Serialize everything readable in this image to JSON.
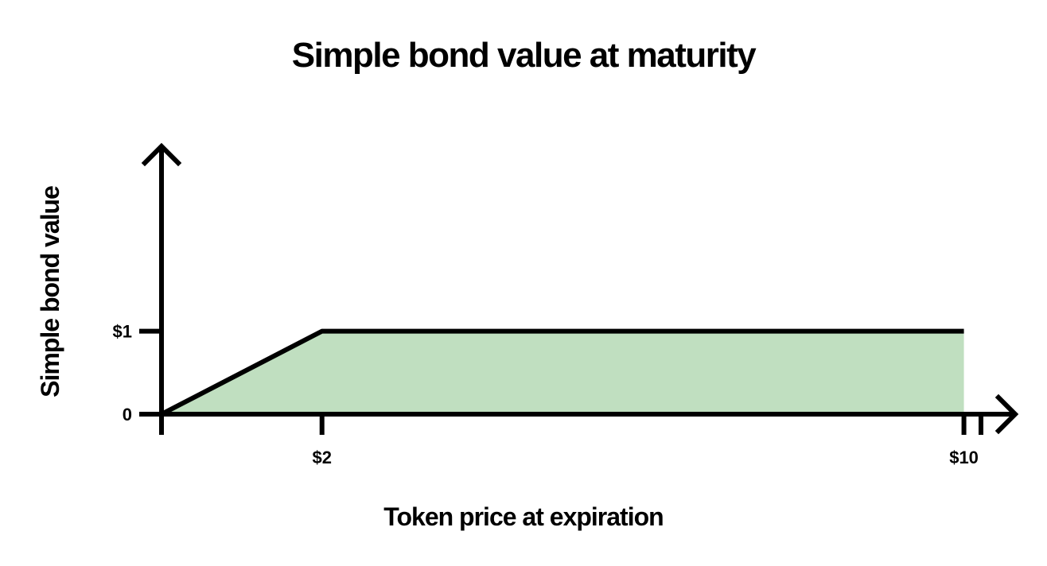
{
  "chart_data": {
    "type": "area",
    "title": "Simple bond value at maturity",
    "xlabel": "Token price at expiration",
    "ylabel": "Simple bond value",
    "x_ticks": [
      {
        "value": 2,
        "label": "$2"
      },
      {
        "value": 10,
        "label": "$10"
      }
    ],
    "y_ticks": [
      {
        "value": 0,
        "label": "0"
      },
      {
        "value": 1,
        "label": "$1"
      }
    ],
    "series": [
      {
        "x": [
          0,
          2,
          10
        ],
        "y": [
          0,
          1,
          1
        ]
      }
    ],
    "xlim": [
      0,
      10.5
    ],
    "ylim": [
      0,
      3.2
    ],
    "grid": false,
    "colors": {
      "fill": "#c0dfc0",
      "line": "#000000",
      "axis": "#000000"
    }
  }
}
